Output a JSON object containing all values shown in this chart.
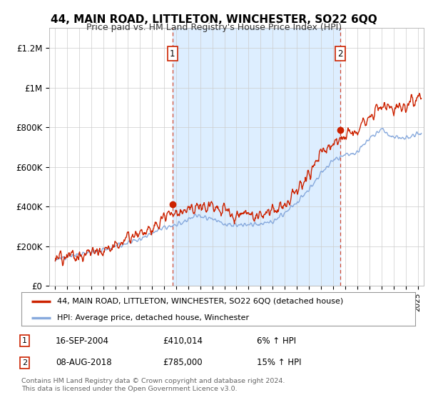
{
  "title": "44, MAIN ROAD, LITTLETON, WINCHESTER, SO22 6QQ",
  "subtitle": "Price paid vs. HM Land Registry's House Price Index (HPI)",
  "ylabel_ticks": [
    "£0",
    "£200K",
    "£400K",
    "£600K",
    "£800K",
    "£1M",
    "£1.2M"
  ],
  "ytick_values": [
    0,
    200000,
    400000,
    600000,
    800000,
    1000000,
    1200000
  ],
  "ylim": [
    0,
    1300000
  ],
  "sale1_x": 2004.71,
  "sale1_y": 410014,
  "sale2_x": 2018.6,
  "sale2_y": 785000,
  "house_color": "#cc2200",
  "hpi_color": "#88aadd",
  "shade_color": "#ddeeff",
  "legend_house": "44, MAIN ROAD, LITTLETON, WINCHESTER, SO22 6QQ (detached house)",
  "legend_hpi": "HPI: Average price, detached house, Winchester",
  "footer1": "Contains HM Land Registry data © Crown copyright and database right 2024.",
  "footer2": "This data is licensed under the Open Government Licence v3.0.",
  "table_rows": [
    {
      "num": "1",
      "date": "16-SEP-2004",
      "price": "£410,014",
      "change": "6% ↑ HPI"
    },
    {
      "num": "2",
      "date": "08-AUG-2018",
      "price": "£785,000",
      "change": "15% ↑ HPI"
    }
  ],
  "xmin": 1994.5,
  "xmax": 2025.5,
  "hpi_pts_x": [
    1995,
    1996,
    1997,
    1998,
    1999,
    2000,
    2001,
    2002,
    2003,
    2004,
    2005,
    2006,
    2007,
    2008,
    2009,
    2010,
    2011,
    2012,
    2013,
    2014,
    2015,
    2016,
    2017,
    2018,
    2019,
    2020,
    2021,
    2022,
    2023,
    2024,
    2025
  ],
  "hpi_pts_y": [
    135000,
    145000,
    155000,
    165000,
    180000,
    200000,
    220000,
    245000,
    270000,
    295000,
    310000,
    330000,
    350000,
    340000,
    310000,
    320000,
    315000,
    310000,
    330000,
    370000,
    420000,
    480000,
    570000,
    630000,
    660000,
    670000,
    740000,
    780000,
    740000,
    750000,
    770000
  ],
  "house_pts_x": [
    1995,
    1996,
    1997,
    1998,
    1999,
    2000,
    2001,
    2002,
    2003,
    2004,
    2005,
    2006,
    2007,
    2008,
    2009,
    2010,
    2011,
    2012,
    2013,
    2014,
    2015,
    2016,
    2017,
    2018,
    2019,
    2020,
    2021,
    2022,
    2023,
    2024,
    2025
  ],
  "house_pts_y": [
    140000,
    150000,
    162000,
    175000,
    195000,
    218000,
    240000,
    265000,
    295000,
    330000,
    360000,
    380000,
    410000,
    390000,
    355000,
    370000,
    365000,
    360000,
    385000,
    430000,
    490000,
    560000,
    660000,
    730000,
    760000,
    780000,
    870000,
    920000,
    870000,
    900000,
    950000
  ]
}
